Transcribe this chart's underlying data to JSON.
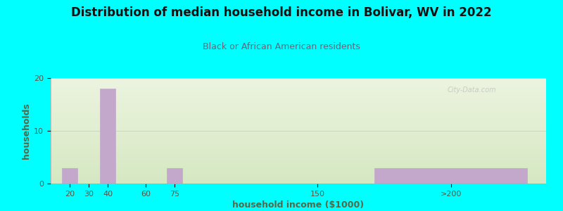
{
  "title": "Distribution of median household income in Bolivar, WV in 2022",
  "subtitle": "Black or African American residents",
  "xlabel": "household income ($1000)",
  "ylabel": "households",
  "background_color": "#00FFFF",
  "plot_bg_color": "#e8f0dc",
  "bar_color": "#c4a8cc",
  "bar_edge_color": "#c4a8cc",
  "categories": [
    "20",
    "30",
    "40",
    "60",
    "75",
    "150",
    ">200"
  ],
  "x_positions": [
    20,
    30,
    40,
    60,
    75,
    150,
    220
  ],
  "bar_widths": [
    8,
    8,
    8,
    8,
    8,
    8,
    80
  ],
  "values": [
    3,
    0,
    18,
    0,
    3,
    0,
    3
  ],
  "xtick_positions": [
    20,
    30,
    40,
    60,
    75,
    150,
    220
  ],
  "xtick_labels": [
    "20",
    "30",
    "40",
    "60",
    "75",
    "150",
    ">200"
  ],
  "xlim": [
    10,
    270
  ],
  "ylim": [
    0,
    20
  ],
  "yticks": [
    0,
    10,
    20
  ],
  "title_fontsize": 12,
  "subtitle_fontsize": 9,
  "axis_label_fontsize": 9,
  "tick_fontsize": 8,
  "watermark_text": "City-Data.com",
  "grid_color": "#c8d8b8",
  "title_color": "#111111",
  "subtitle_color": "#666677",
  "axis_label_color": "#5a6644"
}
